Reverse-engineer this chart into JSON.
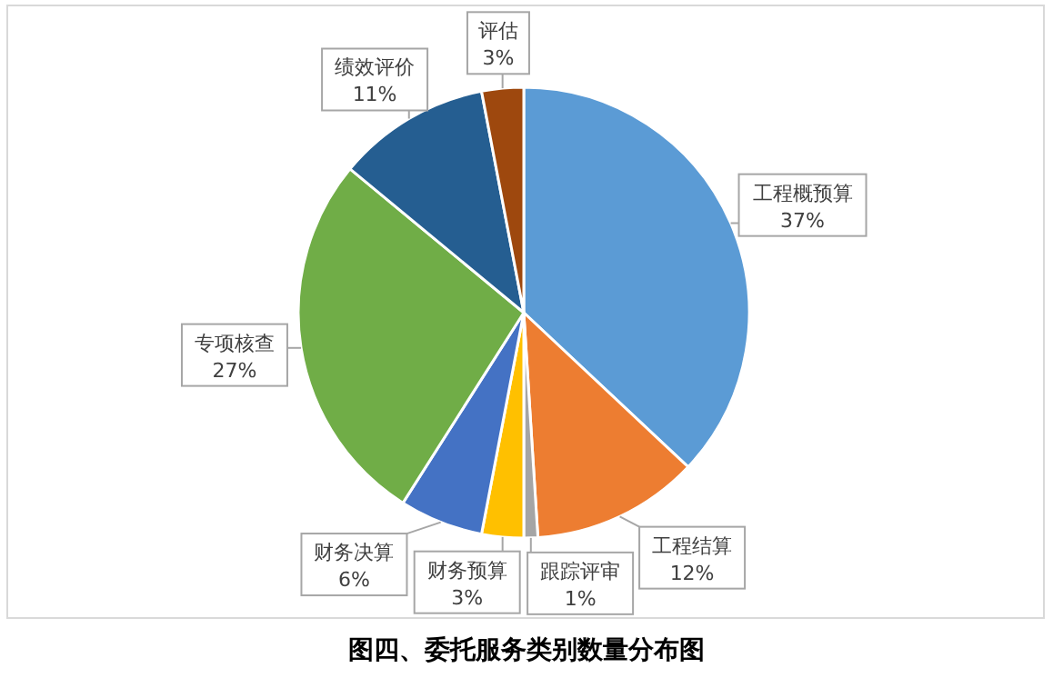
{
  "chart_data": {
    "type": "pie",
    "title": "图四、委托服务类别数量分布图",
    "categories": [
      "工程概预算",
      "工程结算",
      "跟踪评审",
      "财务预算",
      "财务决算",
      "专项核查",
      "绩效评价",
      "评估"
    ],
    "values": [
      37,
      12,
      1,
      3,
      6,
      27,
      11,
      3
    ],
    "colors": [
      "#5b9bd5",
      "#ed7d31",
      "#a5a5a5",
      "#ffc000",
      "#4472c4",
      "#70ad47",
      "#255e91",
      "#9e480e"
    ],
    "value_labels": [
      "37%",
      "12%",
      "1%",
      "3%",
      "6%",
      "27%",
      "11%",
      "3%"
    ],
    "legend": false
  }
}
